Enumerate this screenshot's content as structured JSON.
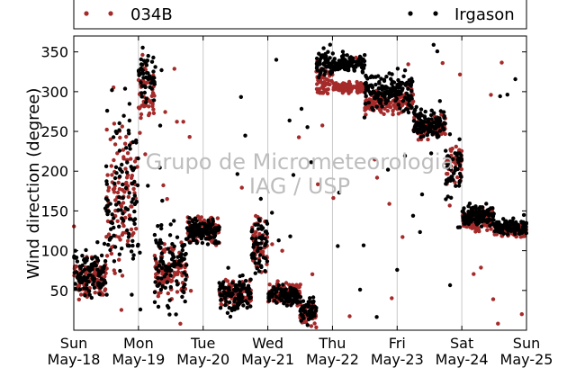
{
  "chart_data": {
    "type": "scatter",
    "title": "",
    "xlabel": "",
    "ylabel": "Wind direction (degree)",
    "ylim": [
      0,
      370
    ],
    "yticks": [
      50,
      100,
      150,
      200,
      250,
      300,
      350
    ],
    "xlim": [
      "2015-05-18",
      "2015-05-25"
    ],
    "xtick_labels": [
      {
        "day": "Sun",
        "date": "May-18"
      },
      {
        "day": "Mon",
        "date": "May-19"
      },
      {
        "day": "Tue",
        "date": "May-20"
      },
      {
        "day": "Wed",
        "date": "May-21"
      },
      {
        "day": "Thu",
        "date": "May-22"
      },
      {
        "day": "Fri",
        "date": "May-23"
      },
      {
        "day": "Sat",
        "date": "May-24"
      },
      {
        "day": "Sun",
        "date": "May-25"
      }
    ],
    "grid": "vertical",
    "legend_placement": "top, above plot",
    "watermark": [
      "Grupo de Micrometeorologia",
      "IAG / USP"
    ],
    "series": [
      {
        "name": "034B",
        "color": "#a52a2a",
        "segments": [
          {
            "start": "2015-05-18T00:00",
            "end": "2015-05-18T12:00",
            "center": 65,
            "spread": 30
          },
          {
            "start": "2015-05-18T12:00",
            "end": "2015-05-19T00:00",
            "center": 160,
            "spread": 120
          },
          {
            "start": "2015-05-19T00:00",
            "end": "2015-05-19T06:00",
            "center": 300,
            "spread": 60
          },
          {
            "start": "2015-05-19T06:00",
            "end": "2015-05-19T18:00",
            "center": 70,
            "spread": 50
          },
          {
            "start": "2015-05-19T18:00",
            "end": "2015-05-20T06:00",
            "center": 125,
            "spread": 25
          },
          {
            "start": "2015-05-20T06:00",
            "end": "2015-05-20T18:00",
            "center": 45,
            "spread": 25
          },
          {
            "start": "2015-05-20T18:00",
            "end": "2015-05-21T00:00",
            "center": 110,
            "spread": 50
          },
          {
            "start": "2015-05-21T00:00",
            "end": "2015-05-21T12:00",
            "center": 45,
            "spread": 20
          },
          {
            "start": "2015-05-21T12:00",
            "end": "2015-05-21T18:00",
            "center": 20,
            "spread": 20
          },
          {
            "start": "2015-05-21T18:00",
            "end": "2015-05-22T00:00",
            "center": 315,
            "spread": 25
          },
          {
            "start": "2015-05-22T00:00",
            "end": "2015-05-22T12:00",
            "center": 305,
            "spread": 10
          },
          {
            "start": "2015-05-22T12:00",
            "end": "2015-05-22T21:00",
            "center": 285,
            "spread": 20
          },
          {
            "start": "2015-05-22T21:00",
            "end": "2015-05-23T06:00",
            "center": 290,
            "spread": 25
          },
          {
            "start": "2015-05-23T06:00",
            "end": "2015-05-23T18:00",
            "center": 255,
            "spread": 20
          },
          {
            "start": "2015-05-23T18:00",
            "end": "2015-05-24T00:00",
            "center": 210,
            "spread": 40
          },
          {
            "start": "2015-05-24T00:00",
            "end": "2015-05-24T12:00",
            "center": 140,
            "spread": 20
          },
          {
            "start": "2015-05-24T12:00",
            "end": "2015-05-25T00:00",
            "center": 125,
            "spread": 15
          }
        ]
      },
      {
        "name": "Irgason",
        "color": "#000000",
        "segments": [
          {
            "start": "2015-05-18T00:00",
            "end": "2015-05-18T12:00",
            "center": 70,
            "spread": 40
          },
          {
            "start": "2015-05-18T12:00",
            "end": "2015-05-19T00:00",
            "center": 180,
            "spread": 150
          },
          {
            "start": "2015-05-19T00:00",
            "end": "2015-05-19T06:00",
            "center": 320,
            "spread": 50
          },
          {
            "start": "2015-05-19T06:00",
            "end": "2015-05-19T18:00",
            "center": 80,
            "spread": 70
          },
          {
            "start": "2015-05-19T18:00",
            "end": "2015-05-20T06:00",
            "center": 125,
            "spread": 25
          },
          {
            "start": "2015-05-20T06:00",
            "end": "2015-05-20T18:00",
            "center": 45,
            "spread": 30
          },
          {
            "start": "2015-05-20T18:00",
            "end": "2015-05-21T00:00",
            "center": 110,
            "spread": 60
          },
          {
            "start": "2015-05-21T00:00",
            "end": "2015-05-21T12:00",
            "center": 45,
            "spread": 20
          },
          {
            "start": "2015-05-21T12:00",
            "end": "2015-05-21T18:00",
            "center": 25,
            "spread": 25
          },
          {
            "start": "2015-05-21T18:00",
            "end": "2015-05-22T00:00",
            "center": 335,
            "spread": 25
          },
          {
            "start": "2015-05-22T00:00",
            "end": "2015-05-22T12:00",
            "center": 335,
            "spread": 15
          },
          {
            "start": "2015-05-22T12:00",
            "end": "2015-05-22T21:00",
            "center": 300,
            "spread": 30
          },
          {
            "start": "2015-05-22T21:00",
            "end": "2015-05-23T06:00",
            "center": 300,
            "spread": 35
          },
          {
            "start": "2015-05-23T06:00",
            "end": "2015-05-23T18:00",
            "center": 260,
            "spread": 25
          },
          {
            "start": "2015-05-23T18:00",
            "end": "2015-05-24T00:00",
            "center": 200,
            "spread": 50
          },
          {
            "start": "2015-05-24T00:00",
            "end": "2015-05-24T12:00",
            "center": 145,
            "spread": 20
          },
          {
            "start": "2015-05-24T12:00",
            "end": "2015-05-25T00:00",
            "center": 130,
            "spread": 15
          }
        ]
      }
    ]
  }
}
